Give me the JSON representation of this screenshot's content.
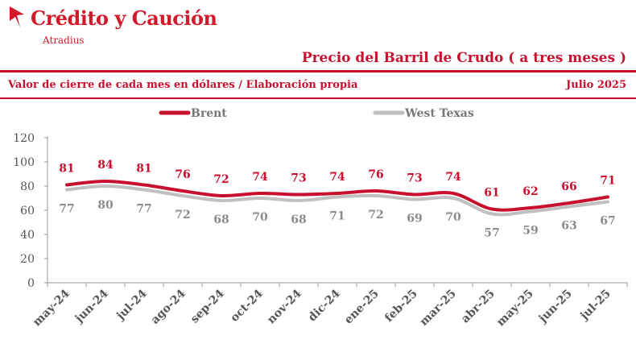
{
  "brand": {
    "name": "Crédito y Caución",
    "sub": "Atradius"
  },
  "header": {
    "title": "Precio del Barril de Crudo ( a tres meses )",
    "subtitle": "Valor de cierre de cada mes en dólares / Elaboración propia",
    "date": "Julio  2025"
  },
  "colors": {
    "brent": "#c8102e",
    "wti": "#c0c0c0",
    "accent": "#c8102e"
  },
  "chart_data": {
    "type": "line",
    "categories": [
      "may-24",
      "jun-24",
      "jul-24",
      "ago-24",
      "sep-24",
      "oct-24",
      "nov-24",
      "dic-24",
      "ene-25",
      "feb-25",
      "mar-25",
      "abr-25",
      "may-25",
      "jun-25",
      "jul-25"
    ],
    "series": [
      {
        "name": "Brent",
        "values": [
          81,
          84,
          81,
          76,
          72,
          74,
          73,
          74,
          76,
          73,
          74,
          61,
          62,
          66,
          71
        ]
      },
      {
        "name": "West Texas",
        "values": [
          77,
          80,
          77,
          72,
          68,
          70,
          68,
          71,
          72,
          69,
          70,
          57,
          59,
          63,
          67
        ]
      }
    ],
    "yticks": [
      "0",
      "20",
      "40",
      "60",
      "80",
      "100",
      "120"
    ],
    "ylim": [
      0,
      120
    ],
    "legend": "top-center",
    "grid": false
  }
}
